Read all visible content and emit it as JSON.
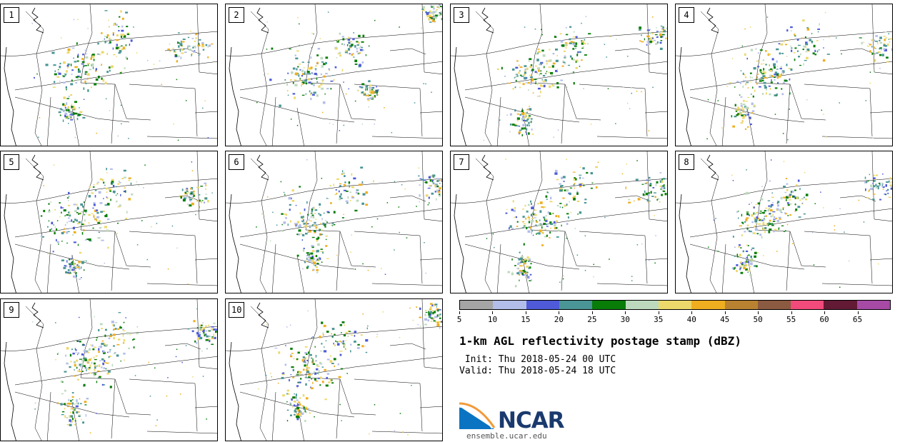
{
  "panels": [
    {
      "label": "1"
    },
    {
      "label": "2"
    },
    {
      "label": "3"
    },
    {
      "label": "4"
    },
    {
      "label": "5"
    },
    {
      "label": "6"
    },
    {
      "label": "7"
    },
    {
      "label": "8"
    },
    {
      "label": "9"
    },
    {
      "label": "10"
    }
  ],
  "legend": {
    "colors": [
      "#a5a5a5",
      "#b3bde9",
      "#4e5ad8",
      "#4a9595",
      "#087d08",
      "#bdd9bd",
      "#ecd86b",
      "#eeae20",
      "#b88231",
      "#8a5a41",
      "#f24a7a",
      "#621a35",
      "#a64aa6"
    ],
    "tick_labels": [
      "5",
      "10",
      "15",
      "20",
      "25",
      "30",
      "35",
      "40",
      "45",
      "50",
      "55",
      "60",
      "65"
    ]
  },
  "title": "1-km AGL reflectivity postage stamp (dBZ)",
  "init": " Init: Thu 2018-05-24 00 UTC",
  "valid": "Valid: Thu 2018-05-24 18 UTC",
  "logo": {
    "text": "NCAR",
    "url": "ensemble.ucar.edu",
    "colors": {
      "blue": "#0a74c2",
      "orange": "#f29a3a",
      "navy": "#1a3a6e"
    }
  }
}
